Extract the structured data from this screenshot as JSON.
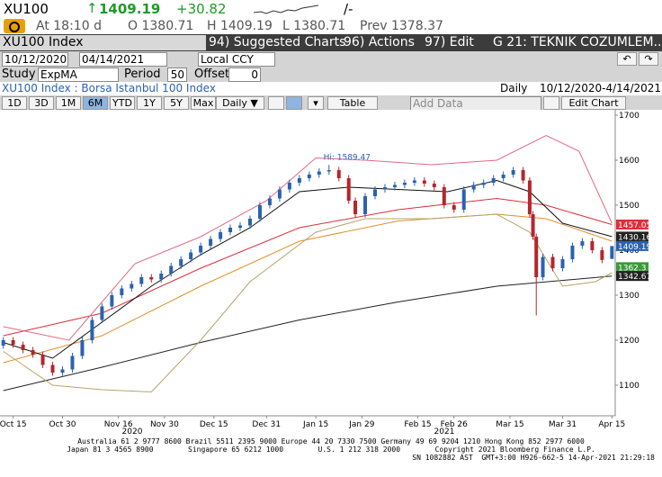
{
  "ui": {
    "ticker": "XU100",
    "last": "1409.19",
    "change": "+30.82",
    "tail": "/-",
    "time": "At 18:10 d",
    "open": "O 1380.71",
    "high": "H 1409.19",
    "low": "L 1380.71",
    "prev": "Prev 1378.37",
    "security": "XU100 Index",
    "menu": [
      "94) Suggested Charts",
      "96) Actions",
      "97) Edit",
      "G 21: TEKNIK COZUMLEM..."
    ],
    "start_date": "10/12/2020",
    "end_date": "04/14/2021",
    "currency": "Local CCY",
    "study_label": "Study",
    "study": "ExpMA",
    "period_label": "Period",
    "period": "50",
    "offset_label": "Offset",
    "offset": "0",
    "description": "XU100 Index : Borsa Istanbul 100 Index",
    "frequency": "Daily",
    "range": "10/12/2020-4/14/2021",
    "periods": [
      "1D",
      "3D",
      "1M",
      "6M",
      "YTD",
      "1Y",
      "5Y",
      "Max"
    ],
    "frequency_button": "Daily",
    "table": "Table",
    "add_data": "Add Data",
    "edit_chart": "Edit Chart",
    "footer": [
      "Australia 61 2 9777 8600 Brazil 5511 2395 9000 Europe 44 20 7330 7500 Germany 49 69 9204 1210 Hong Kong 852 2977 6000",
      "Japan 81 3 4565 8900        Singapore 65 6212 1000        U.S. 1 212 318 2000        Copyright 2021 Bloomberg Finance L.P.",
      "SN 1082882 AST  GMT+3:00 H926-662-5 14-Apr-2021 21:29:18"
    ]
  },
  "chart_data": {
    "type": "candlestick",
    "annotation": "Hi: 1589.47",
    "years": [
      "2020",
      "2021"
    ],
    "up_color": "#2a62b0",
    "down_color": "#b3262c",
    "xlim": [
      -1,
      186
    ],
    "xticks": [
      {
        "value": 3,
        "label": "Oct 15"
      },
      {
        "value": 18,
        "label": "Oct 30"
      },
      {
        "value": 35,
        "label": "Nov 16"
      },
      {
        "value": 49,
        "label": "Nov 30"
      },
      {
        "value": 64,
        "label": "Dec 15"
      },
      {
        "value": 80,
        "label": "Dec 31"
      },
      {
        "value": 95,
        "label": "Jan 15"
      },
      {
        "value": 109,
        "label": "Jan 29"
      },
      {
        "value": 126,
        "label": "Feb 15"
      },
      {
        "value": 137,
        "label": "Feb 26"
      },
      {
        "value": 154,
        "label": "Mar 15"
      },
      {
        "value": 170,
        "label": "Mar 31"
      },
      {
        "value": 185,
        "label": "Apr 15"
      }
    ],
    "ylim": [
      1032,
      1712
    ],
    "yticks": [
      1100,
      1200,
      1300,
      1400,
      1500,
      1600,
      1700
    ],
    "x": [
      0,
      3,
      6,
      9,
      12,
      15,
      18,
      21,
      24,
      27,
      30,
      33,
      36,
      39,
      42,
      45,
      48,
      51,
      54,
      57,
      60,
      63,
      66,
      69,
      72,
      75,
      78,
      81,
      84,
      87,
      90,
      93,
      96,
      99,
      102,
      105,
      107,
      110,
      113,
      116,
      119,
      122,
      125,
      128,
      131,
      134,
      137,
      140,
      143,
      146,
      149,
      152,
      155,
      158,
      160,
      161,
      162,
      164,
      167,
      170,
      173,
      176,
      179,
      182,
      185
    ],
    "open": [
      1188,
      1200,
      1190,
      1178,
      1168,
      1145,
      1128,
      1135,
      1165,
      1200,
      1245,
      1275,
      1300,
      1315,
      1325,
      1340,
      1335,
      1348,
      1365,
      1380,
      1395,
      1410,
      1425,
      1440,
      1450,
      1455,
      1470,
      1500,
      1515,
      1535,
      1550,
      1560,
      1568,
      1575,
      1578,
      1560,
      1510,
      1480,
      1520,
      1535,
      1540,
      1545,
      1550,
      1555,
      1548,
      1540,
      1500,
      1490,
      1535,
      1545,
      1550,
      1560,
      1568,
      1578,
      1555,
      1480,
      1430,
      1340,
      1385,
      1360,
      1380,
      1410,
      1420,
      1400,
      1380.71
    ],
    "high": [
      1207,
      1207,
      1197,
      1185,
      1175,
      1152,
      1142,
      1172,
      1207,
      1252,
      1282,
      1307,
      1322,
      1332,
      1347,
      1347,
      1355,
      1372,
      1387,
      1402,
      1417,
      1432,
      1447,
      1457,
      1462,
      1477,
      1507,
      1522,
      1542,
      1557,
      1567,
      1575,
      1582,
      1589.47,
      1585,
      1567,
      1517,
      1527,
      1542,
      1547,
      1552,
      1557,
      1562,
      1562,
      1555,
      1547,
      1507,
      1542,
      1552,
      1557,
      1567,
      1575,
      1585,
      1585,
      1562,
      1487,
      1437,
      1392,
      1392,
      1387,
      1417,
      1427,
      1427,
      1407,
      1409.19
    ],
    "low": [
      1181,
      1183,
      1171,
      1161,
      1138,
      1121,
      1121,
      1128,
      1158,
      1193,
      1238,
      1268,
      1293,
      1308,
      1318,
      1328,
      1328,
      1341,
      1358,
      1373,
      1388,
      1403,
      1418,
      1433,
      1443,
      1448,
      1463,
      1493,
      1508,
      1528,
      1543,
      1553,
      1561,
      1568,
      1553,
      1503,
      1473,
      1473,
      1513,
      1528,
      1533,
      1538,
      1543,
      1541,
      1533,
      1493,
      1483,
      1483,
      1528,
      1538,
      1543,
      1553,
      1561,
      1548,
      1473,
      1423,
      1255,
      1333,
      1353,
      1353,
      1373,
      1403,
      1393,
      1371,
      1380.71
    ],
    "close": [
      1200,
      1190,
      1178,
      1168,
      1145,
      1128,
      1135,
      1165,
      1200,
      1245,
      1275,
      1300,
      1315,
      1325,
      1340,
      1335,
      1348,
      1365,
      1380,
      1395,
      1410,
      1425,
      1440,
      1450,
      1455,
      1470,
      1500,
      1515,
      1535,
      1550,
      1560,
      1568,
      1575,
      1578,
      1560,
      1510,
      1480,
      1520,
      1535,
      1540,
      1545,
      1550,
      1555,
      1548,
      1540,
      1500,
      1490,
      1535,
      1545,
      1550,
      1560,
      1568,
      1578,
      1555,
      1480,
      1430,
      1340,
      1385,
      1360,
      1380,
      1410,
      1420,
      1400,
      1378.37,
      1409.19
    ],
    "lines": [
      {
        "color": "#222222",
        "x": [
          0,
          30,
          60,
          90,
          120,
          150,
          185
        ],
        "values": [
          1088,
          1140,
          1195,
          1245,
          1285,
          1320,
          1342.67
        ]
      },
      {
        "color": "#e0902a",
        "x": [
          0,
          30,
          60,
          90,
          120,
          150,
          165,
          185
        ],
        "values": [
          1150,
          1210,
          1320,
          1420,
          1465,
          1480,
          1470,
          1420
        ]
      },
      {
        "color": "#d9303a",
        "x": [
          0,
          30,
          60,
          90,
          120,
          150,
          165,
          185
        ],
        "values": [
          1210,
          1260,
          1360,
          1450,
          1490,
          1515,
          1500,
          1457.05
        ]
      },
      {
        "color": "#111111",
        "x": [
          0,
          15,
          30,
          45,
          60,
          75,
          90,
          105,
          120,
          135,
          150,
          160,
          170,
          185
        ],
        "values": [
          1195,
          1160,
          1240,
          1320,
          1390,
          1450,
          1530,
          1540,
          1535,
          1530,
          1555,
          1530,
          1460,
          1430.16
        ]
      },
      {
        "color": "#e06a86",
        "x": [
          0,
          20,
          40,
          60,
          80,
          95,
          110,
          130,
          150,
          165,
          175,
          185
        ],
        "values": [
          1230,
          1200,
          1370,
          1430,
          1510,
          1605,
          1600,
          1590,
          1600,
          1655,
          1620,
          1460
        ]
      },
      {
        "color": "#b5a46a",
        "x": [
          0,
          15,
          30,
          45,
          60,
          75,
          95,
          110,
          130,
          150,
          160,
          170,
          180,
          185
        ],
        "values": [
          1175,
          1100,
          1090,
          1085,
          1200,
          1330,
          1440,
          1470,
          1470,
          1480,
          1440,
          1320,
          1330,
          1350
        ]
      }
    ],
    "price_labels": [
      {
        "value": 1457.05,
        "color": "#d9303a"
      },
      {
        "value": 1430.16,
        "color": "#222222"
      },
      {
        "value": 1409.19,
        "color": "#2a62b0"
      },
      {
        "value": 1362.3,
        "color": "#3a9a3a"
      },
      {
        "value": 1342.67,
        "color": "#222222"
      }
    ]
  }
}
